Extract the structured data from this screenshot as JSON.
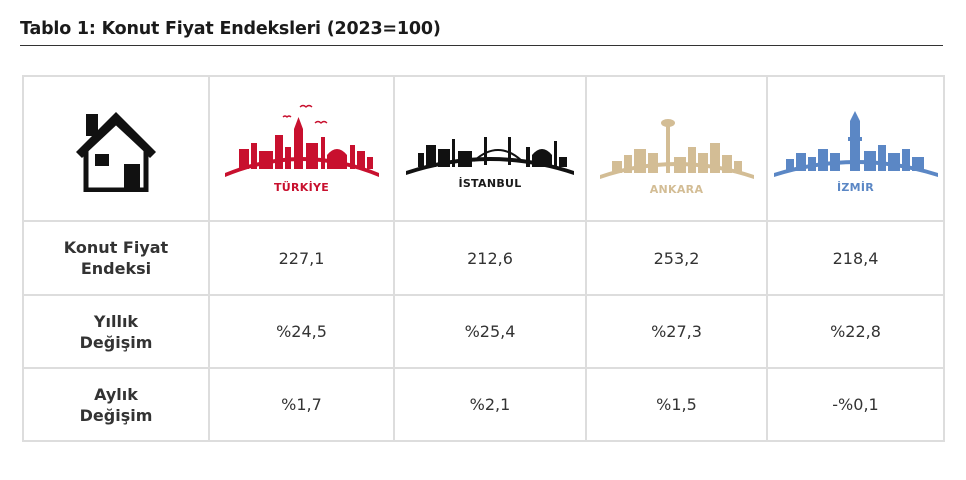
{
  "title": "Tablo 1: Konut Fiyat Endeksleri (2023=100)",
  "columns": [
    {
      "name": "TÜRKİYE",
      "color": "#c8102e",
      "icon": "turkiye-skyline-icon"
    },
    {
      "name": "İSTANBUL",
      "color": "#1a1a1a",
      "icon": "istanbul-skyline-icon"
    },
    {
      "name": "ANKARA",
      "color": "#d3bd95",
      "icon": "ankara-skyline-icon"
    },
    {
      "name": "İZMİR",
      "color": "#5b87c5",
      "icon": "izmir-skyline-icon"
    }
  ],
  "header_icon": "house-icon",
  "rows": [
    {
      "label_lines": [
        "Konut Fiyat",
        "Endeksi"
      ],
      "values": [
        "227,1",
        "212,6",
        "253,2",
        "218,4"
      ]
    },
    {
      "label_lines": [
        "Yıllık",
        "Değişim"
      ],
      "values": [
        "%24,5",
        "%25,4",
        "%27,3",
        "%22,8"
      ]
    },
    {
      "label_lines": [
        "Aylık",
        "Değişim"
      ],
      "values": [
        "%1,7",
        "%2,1",
        "%1,5",
        "-%0,1"
      ]
    }
  ]
}
